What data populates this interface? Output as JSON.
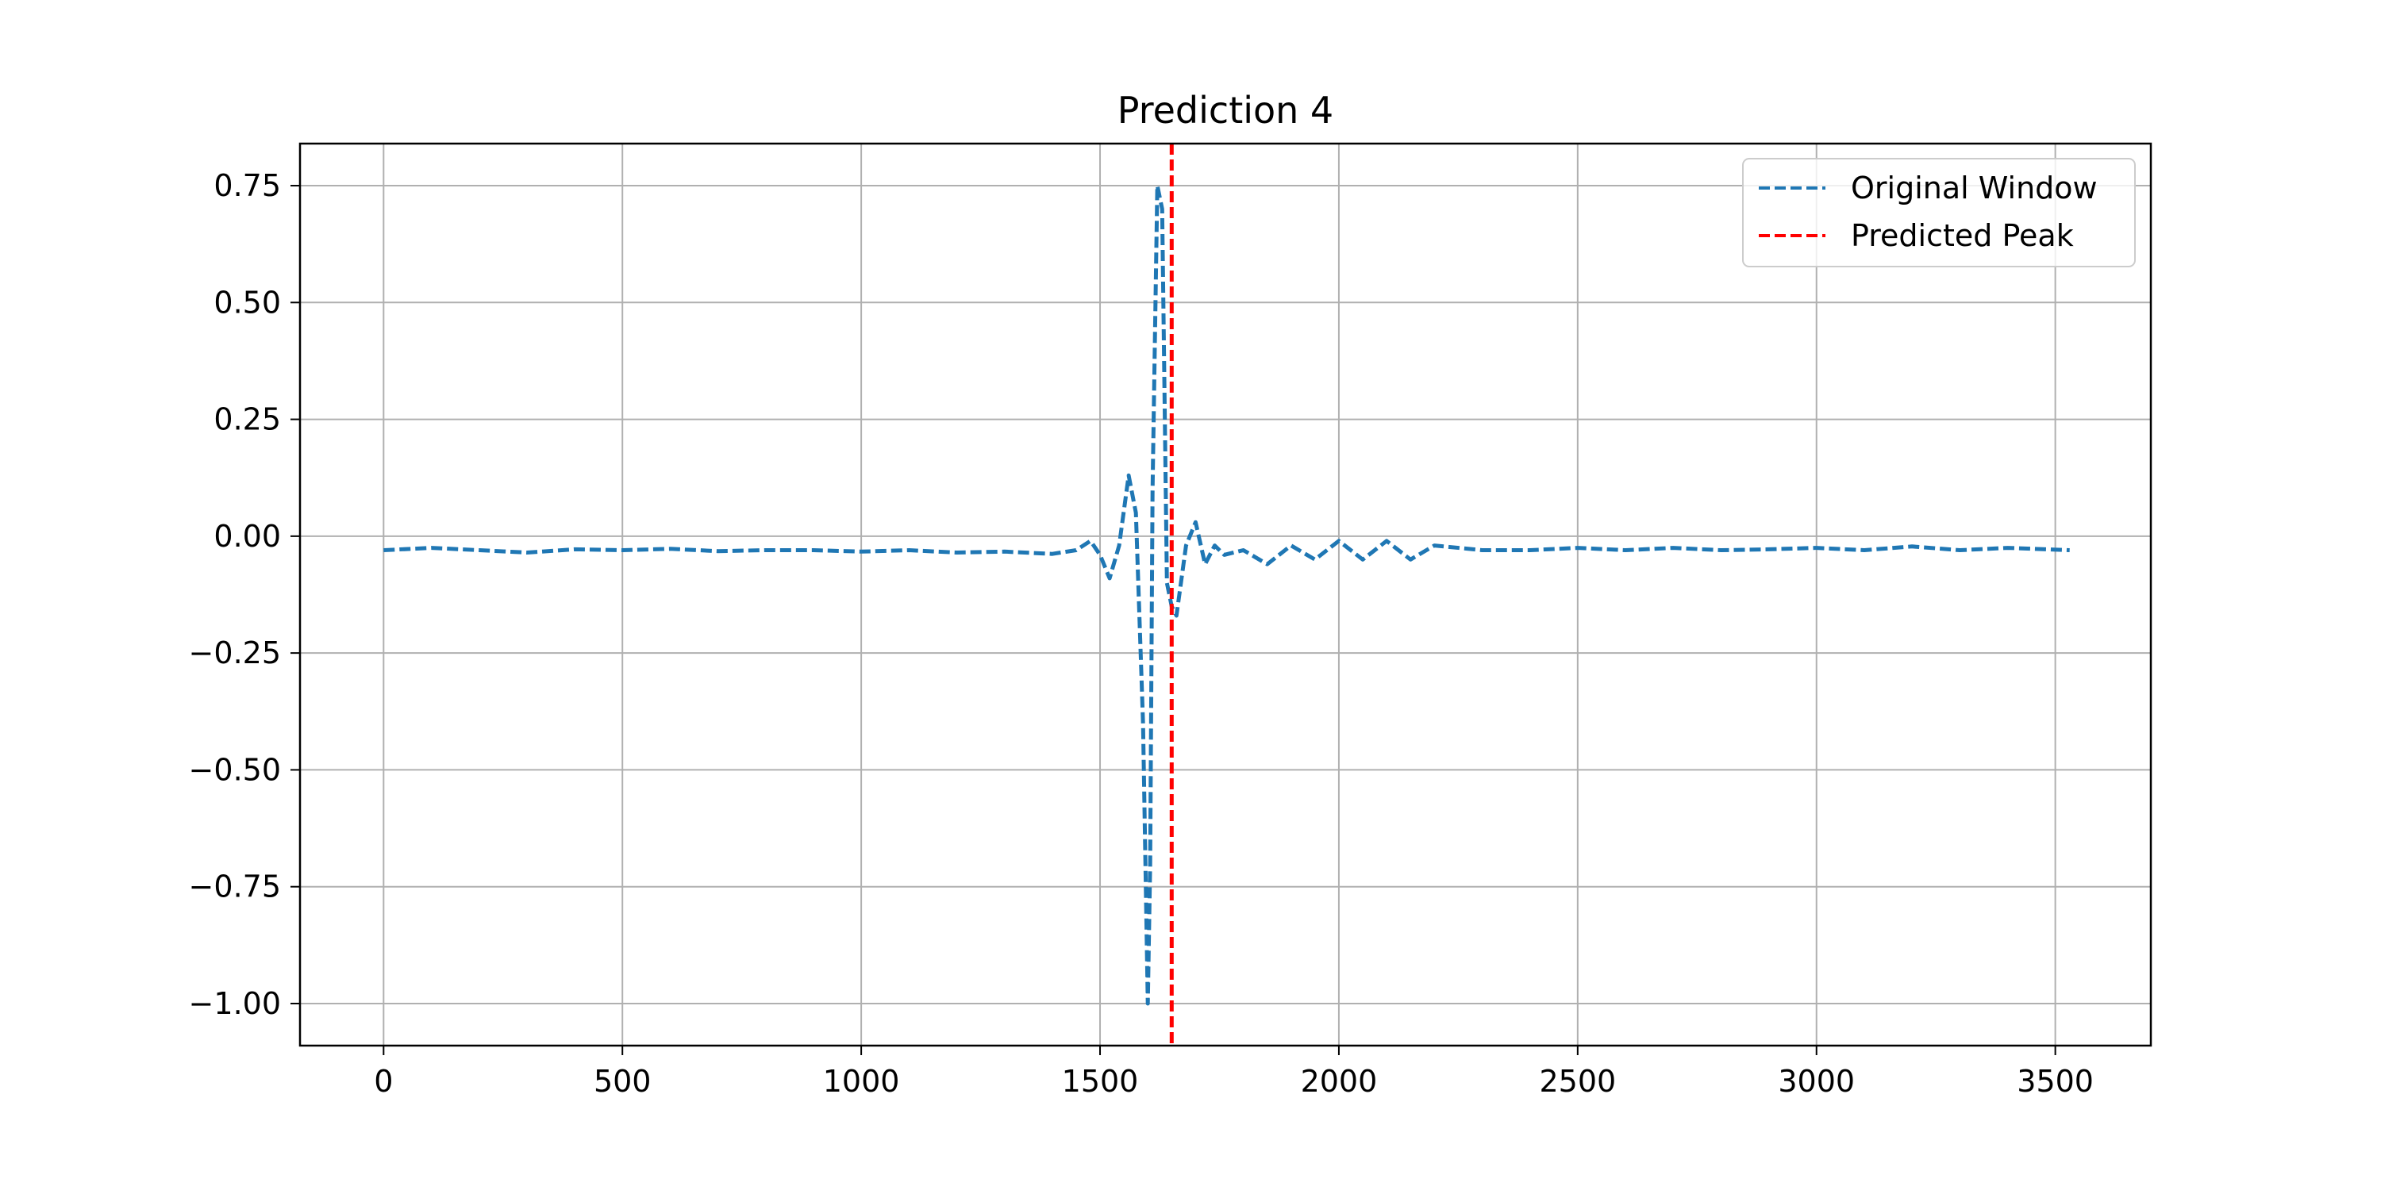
{
  "chart_data": {
    "type": "line",
    "title": "Prediction 4",
    "xlabel": "",
    "ylabel": "",
    "xlim": [
      -175,
      3700
    ],
    "ylim": [
      -1.09,
      0.84
    ],
    "grid": true,
    "legend_position": "upper-right",
    "x_ticks": [
      0,
      500,
      1000,
      1500,
      2000,
      2500,
      3000,
      3500
    ],
    "x_tick_labels": [
      "0",
      "500",
      "1000",
      "1500",
      "2000",
      "2500",
      "3000",
      "3500"
    ],
    "y_ticks": [
      0.75,
      0.5,
      0.25,
      0.0,
      -0.25,
      -0.5,
      -0.75,
      -1.0
    ],
    "y_tick_labels": [
      "0.75",
      "0.50",
      "0.25",
      "0.00",
      "−0.25",
      "−0.50",
      "−0.75",
      "−1.00"
    ],
    "series": [
      {
        "name": "Original Window",
        "color": "#1f77b4",
        "style": "dashed",
        "x": [
          0,
          100,
          200,
          300,
          400,
          500,
          600,
          700,
          800,
          900,
          1000,
          1100,
          1200,
          1300,
          1400,
          1450,
          1480,
          1500,
          1520,
          1540,
          1560,
          1575,
          1590,
          1600,
          1605,
          1610,
          1620,
          1630,
          1640,
          1650,
          1660,
          1680,
          1700,
          1720,
          1740,
          1760,
          1800,
          1850,
          1900,
          1950,
          2000,
          2050,
          2100,
          2150,
          2200,
          2300,
          2400,
          2500,
          2600,
          2700,
          2800,
          2900,
          3000,
          3100,
          3200,
          3300,
          3400,
          3530
        ],
        "y": [
          -0.03,
          -0.025,
          -0.03,
          -0.035,
          -0.028,
          -0.03,
          -0.027,
          -0.032,
          -0.03,
          -0.03,
          -0.033,
          -0.03,
          -0.035,
          -0.033,
          -0.038,
          -0.03,
          -0.01,
          -0.04,
          -0.09,
          -0.02,
          0.13,
          0.05,
          -0.4,
          -1.0,
          -0.7,
          0.1,
          0.75,
          0.7,
          -0.1,
          -0.15,
          -0.17,
          -0.02,
          0.03,
          -0.06,
          -0.02,
          -0.04,
          -0.03,
          -0.06,
          -0.02,
          -0.05,
          -0.01,
          -0.05,
          -0.01,
          -0.05,
          -0.02,
          -0.03,
          -0.03,
          -0.025,
          -0.03,
          -0.025,
          -0.03,
          -0.028,
          -0.025,
          -0.03,
          -0.022,
          -0.03,
          -0.025,
          -0.03
        ]
      },
      {
        "name": "Predicted Peak",
        "color": "#ff0000",
        "style": "dashed",
        "vline_x": 1650
      }
    ]
  }
}
